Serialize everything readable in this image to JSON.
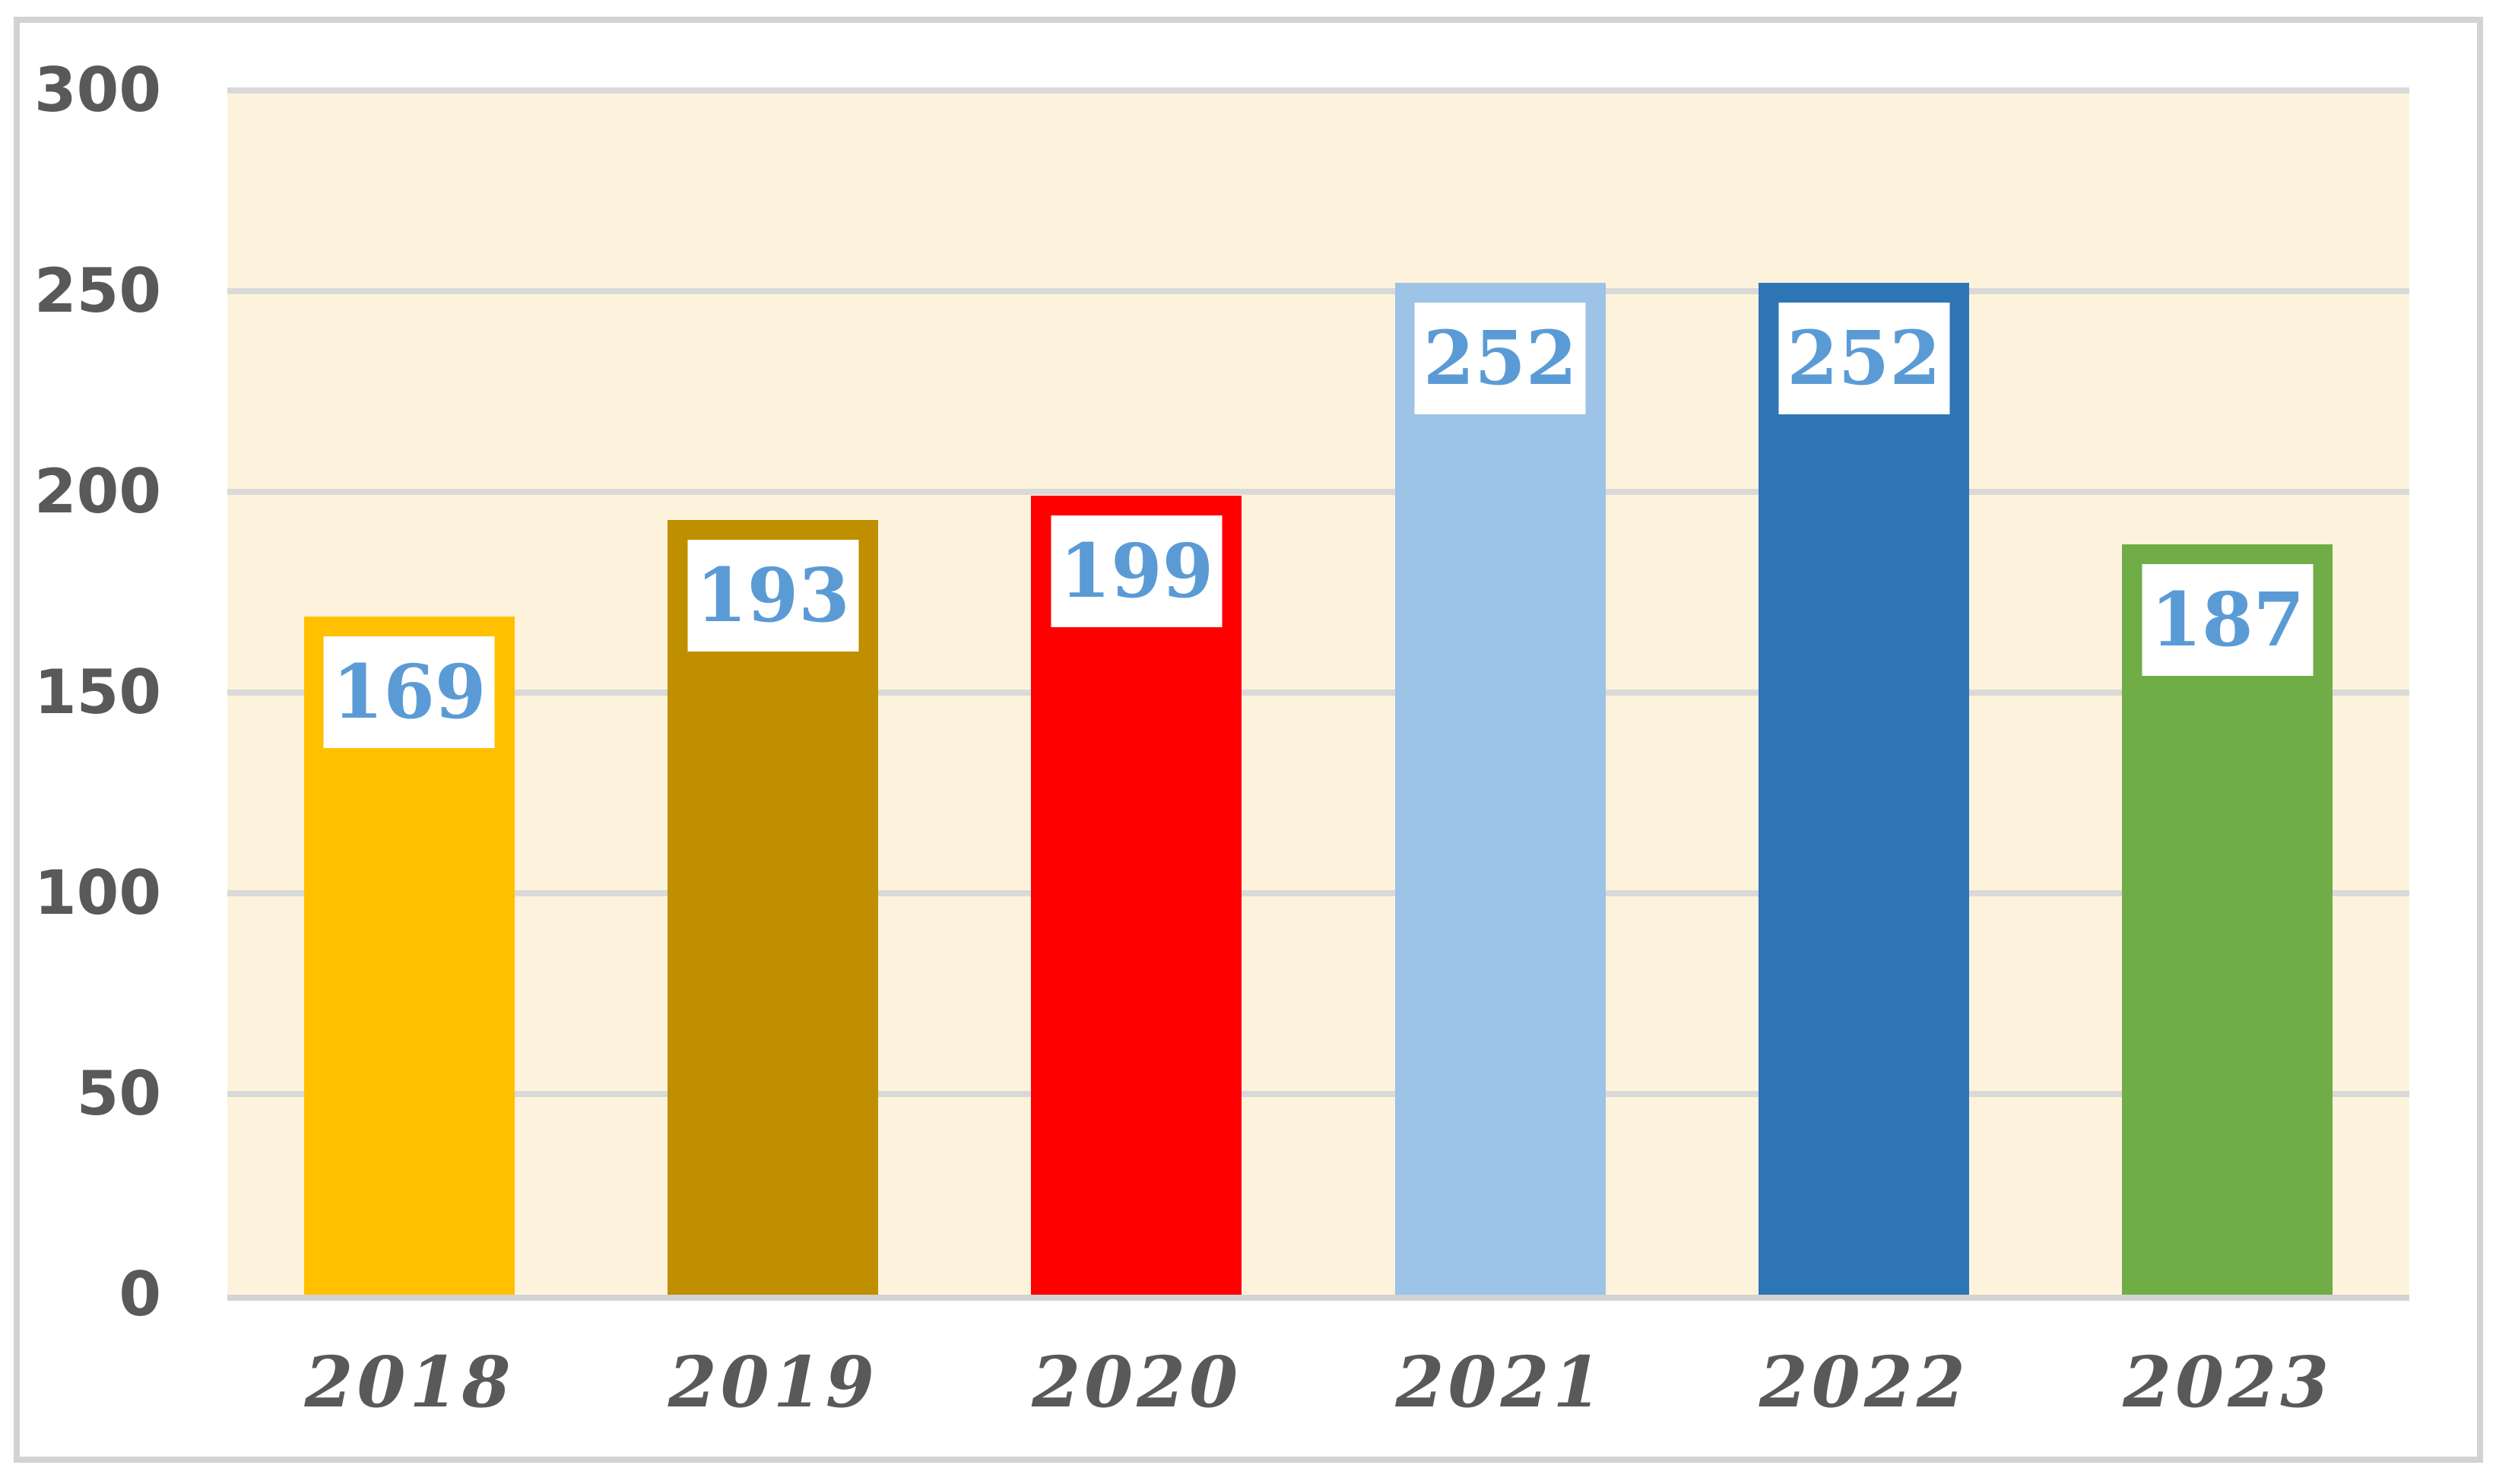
{
  "chart_data": {
    "type": "bar",
    "categories": [
      "2018",
      "2019",
      "2020",
      "2021",
      "2022",
      "2023"
    ],
    "values": [
      169,
      193,
      199,
      252,
      252,
      187
    ],
    "bar_colors": [
      "#FFC000",
      "#BF8F00",
      "#FF0000",
      "#9DC3E6",
      "#2E75B6",
      "#70AD47"
    ],
    "y_ticks": [
      0,
      50,
      100,
      150,
      200,
      250,
      300
    ],
    "ylim": [
      0,
      300
    ],
    "title": "",
    "xlabel": "",
    "ylabel": "",
    "grid": "horizontal",
    "legend": "none",
    "data_labels_shown": true,
    "colors": {
      "plot_background": "#FDF3DC",
      "gridline": "#D9D9D9",
      "frame_border": "#D3D3D3",
      "axis_text": "#595959",
      "data_label_text": "#5B9BD5",
      "data_label_background": "#FFFFFF",
      "page_background": "#FFFFFF"
    }
  }
}
